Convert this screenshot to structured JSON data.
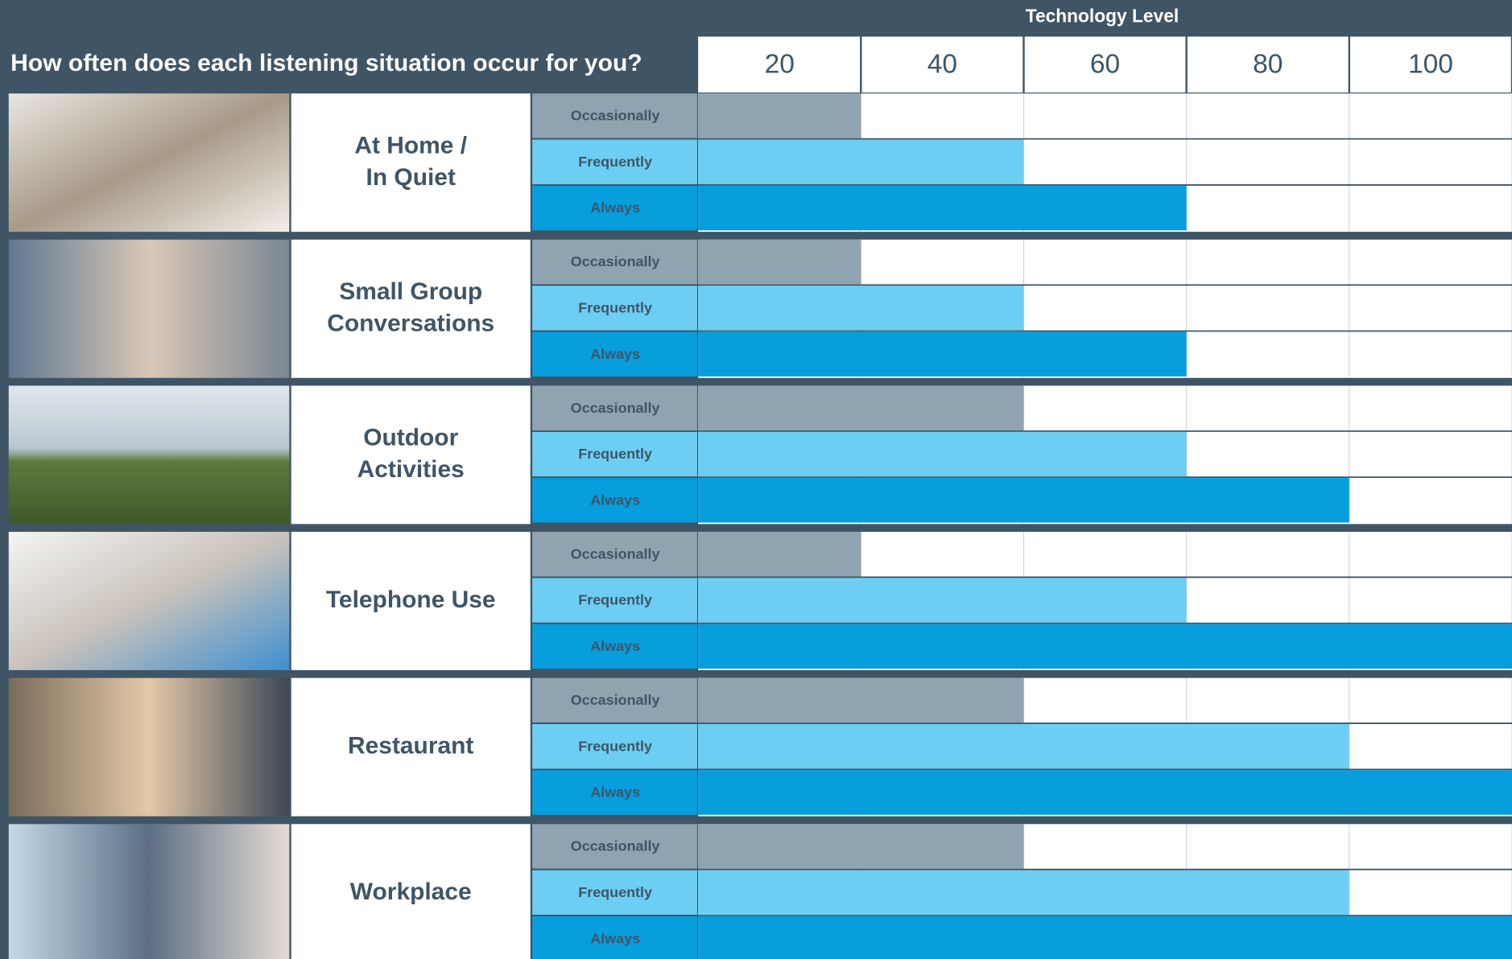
{
  "chart_data": {
    "type": "bar",
    "orientation": "horizontal",
    "title": "How often does each listening situation occur for you?",
    "x_label": "Technology Level",
    "categories": [
      [
        "At Home /",
        "In Quiet"
      ],
      [
        "Small Group",
        "Conversations"
      ],
      [
        "Outdoor",
        "Activities"
      ],
      [
        "Telephone Use"
      ],
      [
        "Restaurant"
      ],
      [
        "Workplace"
      ]
    ],
    "series": [
      {
        "name": "Occasionally",
        "color": "#8fa3b1",
        "values": [
          20,
          20,
          40,
          20,
          40,
          40
        ]
      },
      {
        "name": "Frequently",
        "color": "#6dcef3",
        "values": [
          40,
          40,
          60,
          60,
          80,
          80
        ]
      },
      {
        "name": "Always",
        "color": "#079ede",
        "values": [
          60,
          60,
          80,
          100,
          100,
          100
        ]
      }
    ],
    "xlim": [
      0,
      100
    ],
    "xticks": [
      20,
      40,
      60,
      80,
      100
    ],
    "grid": true
  }
}
